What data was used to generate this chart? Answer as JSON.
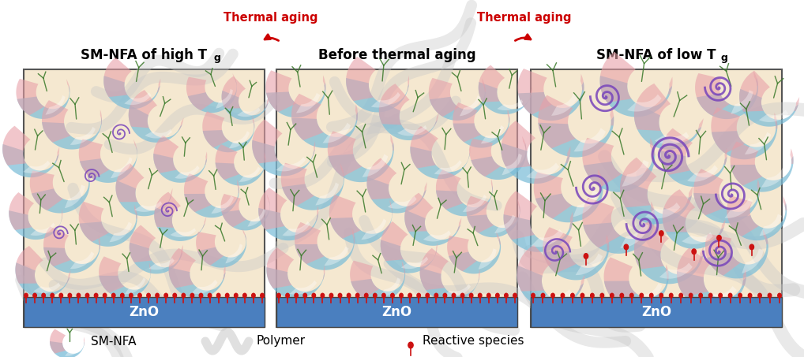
{
  "fig_width": 10.18,
  "fig_height": 4.53,
  "bg_color": "#FFFFFF",
  "panel_bg": "#F5E8D0",
  "zno_color": "#4A7FBF",
  "sm_nfa_blue": "#7BBDD8",
  "sm_nfa_pink": "#E8A0A8",
  "sm_nfa_white": "#D8EEF8",
  "polymer_color": "#C8C8C8",
  "red_color": "#CC1111",
  "purple_color": "#7744BB",
  "green_color": "#3A7A2A",
  "arrow_color": "#CC0000",
  "arrow_label": "Thermal aging",
  "panel_titles_left": "SM-NFA of high T",
  "panel_titles_mid": "Before thermal aging",
  "panel_titles_right": "SM-NFA of low T",
  "subscript_g": "g",
  "zno_label": "ZnO",
  "legend_nfa": "SM-NFA",
  "legend_poly": "Polymer",
  "legend_rs": "Reactive species"
}
